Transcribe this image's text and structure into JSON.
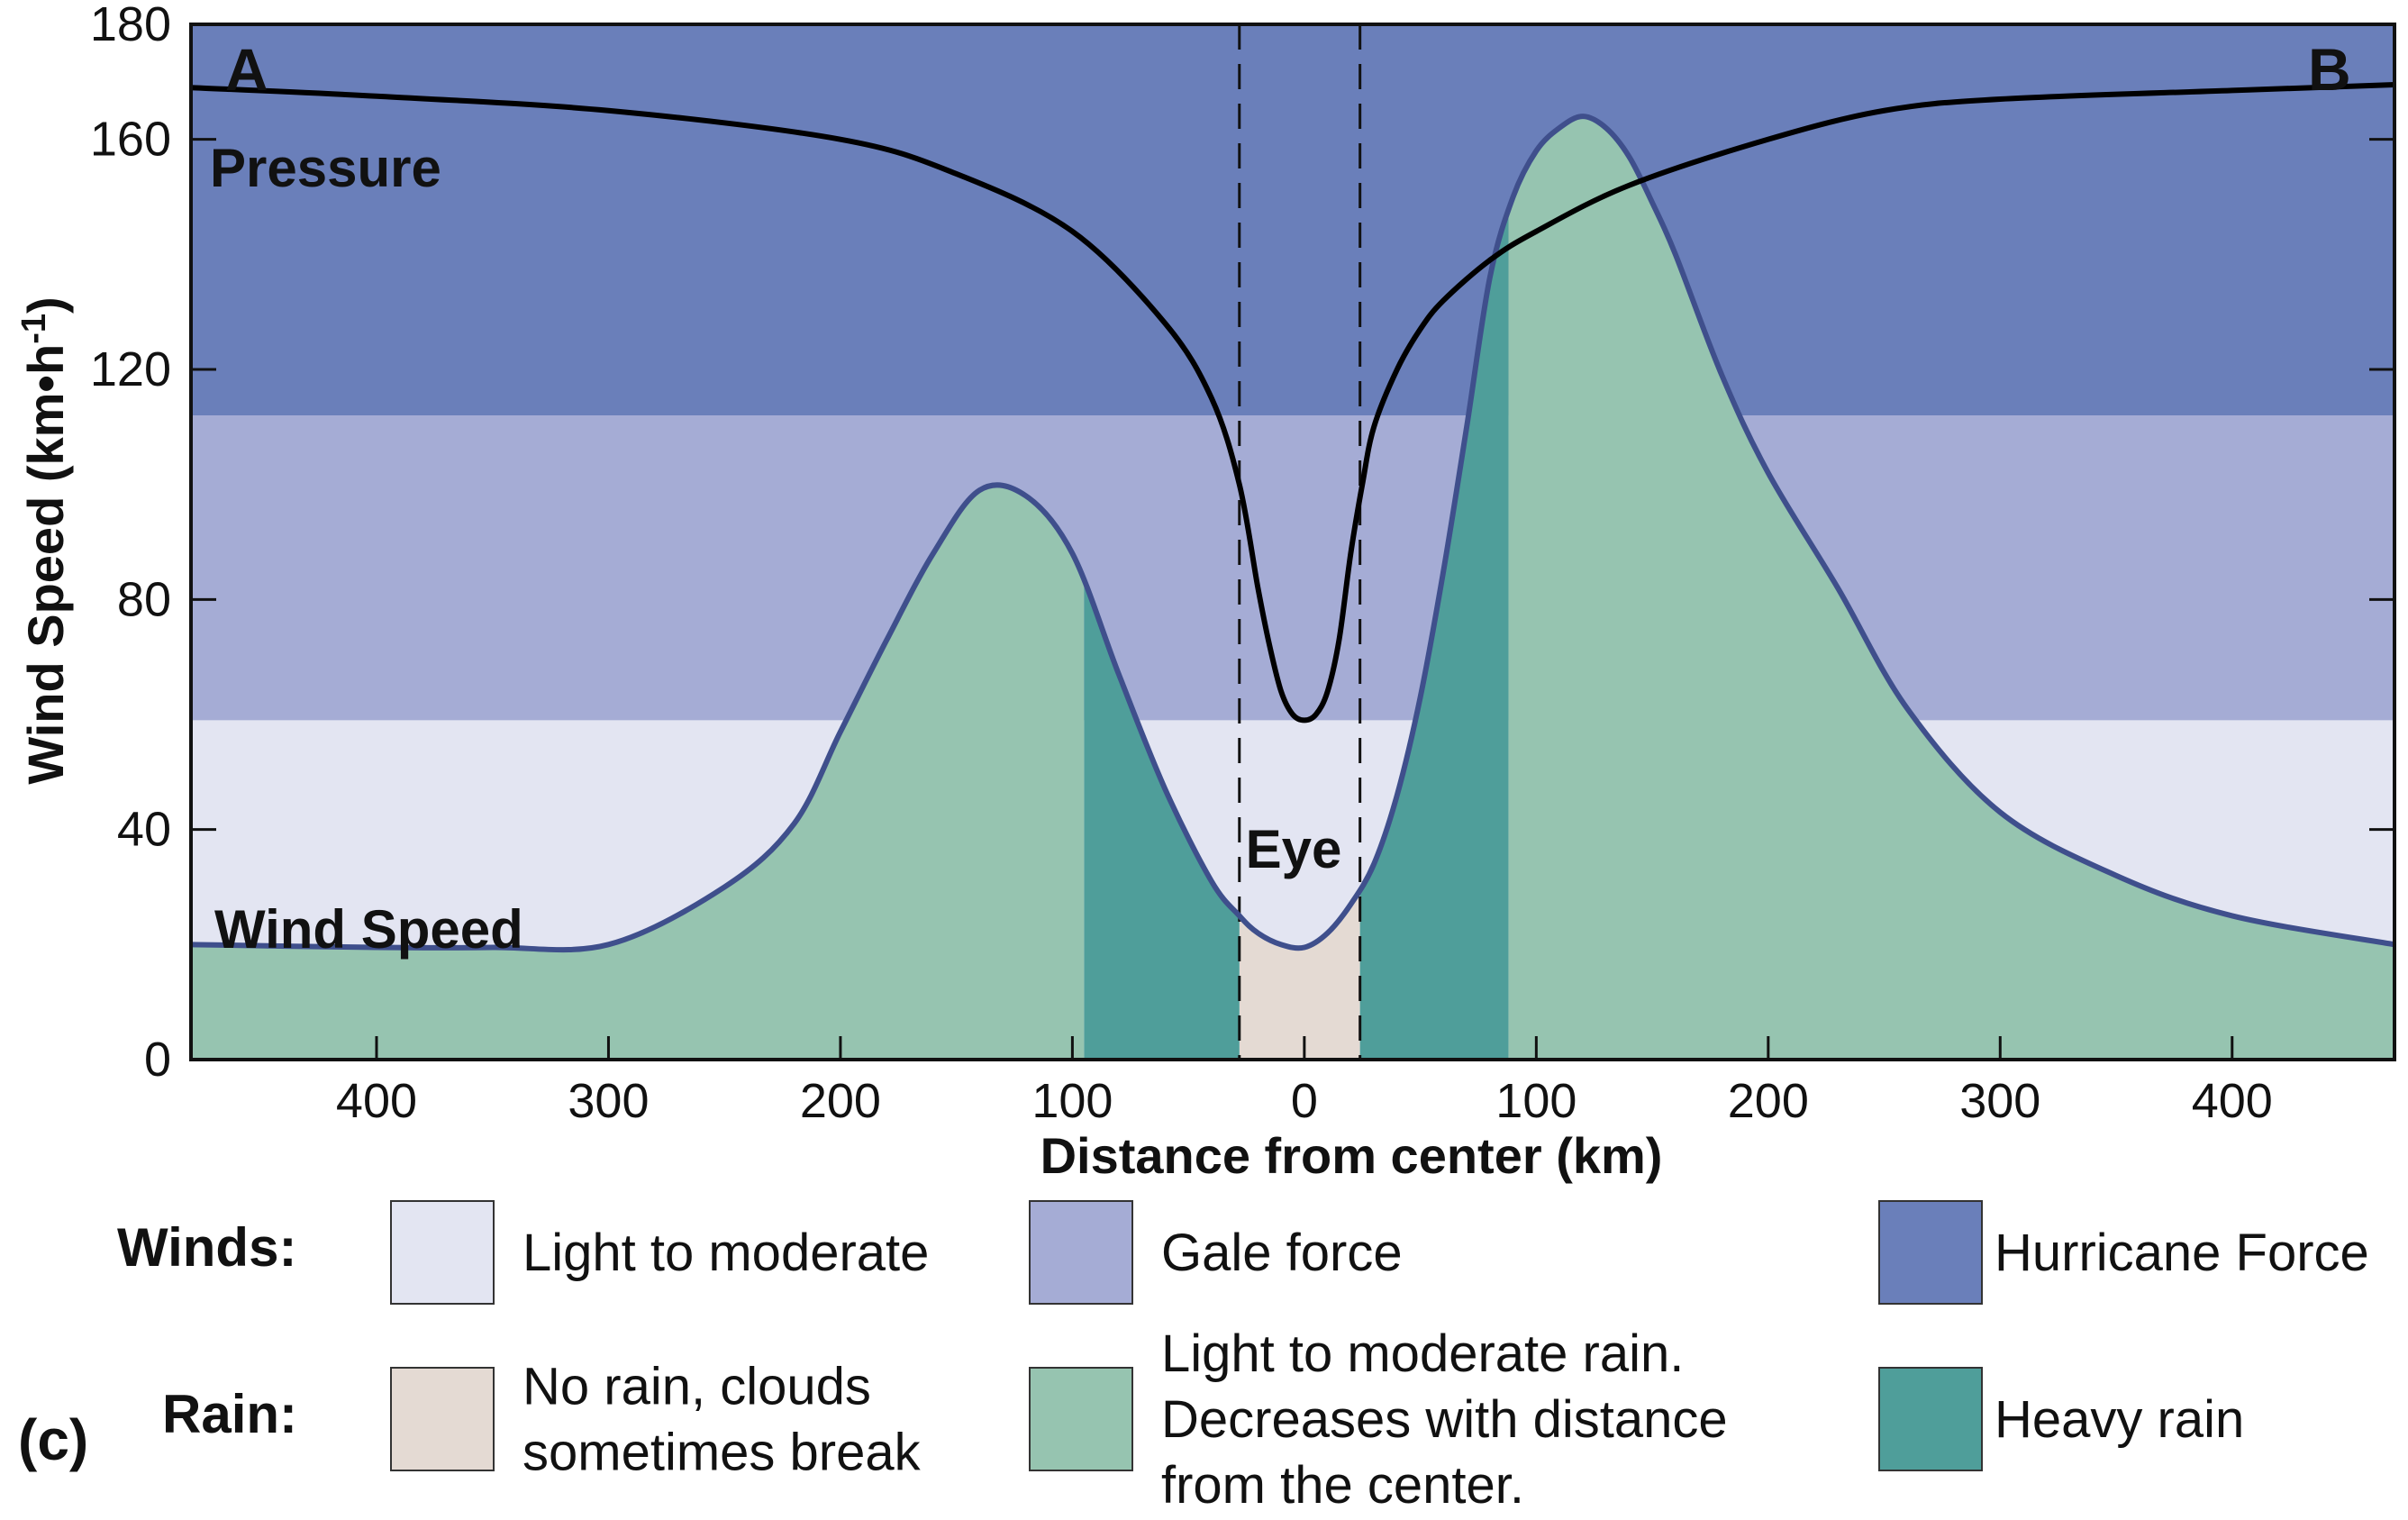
{
  "chart_data": {
    "type": "area",
    "xlabel": "Distance from center (km)",
    "ylabel": "Wind Speed (km•h-1)",
    "ylim": [
      0,
      180
    ],
    "yticks": [
      0,
      40,
      80,
      120,
      160,
      180
    ],
    "xlim": [
      -480,
      470
    ],
    "xtick_values": [
      -400,
      -300,
      -200,
      -100,
      0,
      100,
      200,
      300,
      400
    ],
    "xtick_labels": [
      "400",
      "300",
      "200",
      "100",
      "0",
      "100",
      "200",
      "300",
      "400"
    ],
    "corner_labels": {
      "left": "A",
      "right": "B"
    },
    "panel_label": "(c)",
    "wind_bands": [
      {
        "name": "Light to moderate",
        "from": 0,
        "to": 59,
        "color": "#e3e5f2"
      },
      {
        "name": "Gale force",
        "from": 59,
        "to": 112,
        "color": "#a5acd5"
      },
      {
        "name": "Hurricane Force",
        "from": 112,
        "to": 180,
        "color": "#6a7fba"
      }
    ],
    "rain_zones": [
      {
        "name": "No rain, clouds sometimes break",
        "from": -28,
        "to": 24,
        "color": "#e4dad3"
      },
      {
        "name": "Heavy rain",
        "from": -95,
        "to": -28,
        "color": "#4f9e9a"
      },
      {
        "name": "Heavy rain",
        "from": 24,
        "to": 88,
        "color": "#4f9e9a"
      },
      {
        "name": "Light to moderate rain",
        "from": -480,
        "to": -95,
        "color": "#96c4b0"
      },
      {
        "name": "Light to moderate rain",
        "from": 88,
        "to": 470,
        "color": "#96c4b0"
      }
    ],
    "series": [
      {
        "name": "Wind Speed",
        "color": "#3f4f8c",
        "x": [
          -480,
          -400,
          -350,
          -300,
          -250,
          -220,
          -200,
          -180,
          -160,
          -140,
          -120,
          -100,
          -80,
          -60,
          -40,
          -28,
          -20,
          -10,
          0,
          10,
          20,
          30,
          40,
          50,
          60,
          70,
          80,
          90,
          100,
          110,
          120,
          130,
          140,
          150,
          160,
          180,
          200,
          230,
          260,
          300,
          350,
          400,
          470
        ],
        "y": [
          20,
          19.5,
          19.5,
          20,
          30,
          41,
          57,
          73,
          88,
          99,
          98,
          88,
          67,
          47,
          31,
          25,
          22,
          20,
          19.5,
          22,
          27,
          34,
          46,
          63,
          85,
          110,
          136,
          150,
          158,
          162,
          164,
          162,
          157,
          149,
          140,
          119,
          102,
          82,
          61,
          43,
          32,
          25,
          20
        ]
      },
      {
        "name": "Pressure",
        "color": "#000000",
        "x": [
          -480,
          -400,
          -300,
          -200,
          -150,
          -100,
          -60,
          -40,
          -28,
          -20,
          -15,
          -10,
          -5,
          0,
          5,
          10,
          15,
          20,
          25,
          30,
          40,
          50,
          60,
          80,
          100,
          140,
          200,
          250,
          300,
          400,
          470
        ],
        "y": [
          169,
          167.5,
          165,
          160,
          154,
          144,
          128,
          115,
          100,
          82,
          72,
          64,
          60,
          59,
          60,
          64,
          73,
          88,
          100,
          110,
          120,
          127,
          132,
          139,
          144,
          152,
          160,
          165,
          167,
          168.5,
          169.5
        ]
      }
    ]
  },
  "legend": {
    "winds_heading": "Winds:",
    "rain_heading": "Rain:",
    "winds": [
      {
        "lines": [
          "Light to moderate"
        ],
        "color": "#e3e5f2"
      },
      {
        "lines": [
          "Gale force"
        ],
        "color": "#a5acd5"
      },
      {
        "lines": [
          "Hurricane Force"
        ],
        "color": "#6a7fba"
      }
    ],
    "rain": [
      {
        "lines": [
          "No rain, clouds",
          "sometimes break"
        ],
        "color": "#e4dad3"
      },
      {
        "lines": [
          "Light to moderate rain.",
          "Decreases with distance",
          "from the center."
        ],
        "color": "#96c4b0"
      },
      {
        "lines": [
          "Heavy rain"
        ],
        "color": "#4f9e9a"
      }
    ]
  },
  "annotations": {
    "pressure": "Pressure",
    "wind_speed": "Wind Speed",
    "eye": "Eye"
  }
}
